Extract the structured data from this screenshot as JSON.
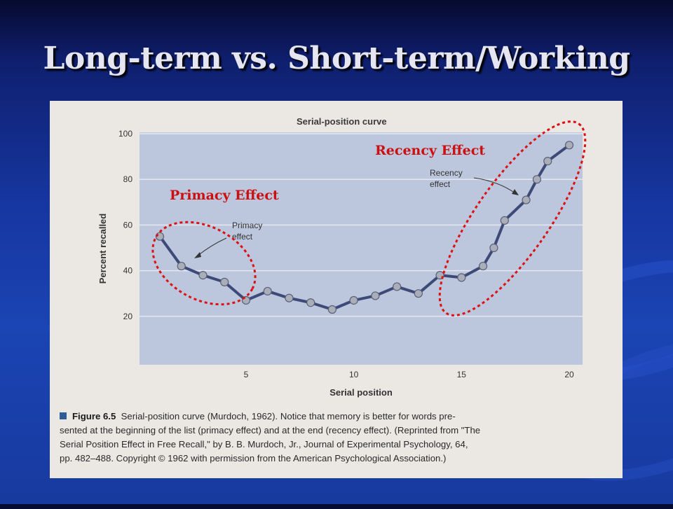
{
  "slide": {
    "title": "Long-term vs. Short-term/Working"
  },
  "figure": {
    "caption_label": "Figure 6.5",
    "caption_line1": "Serial-position curve (Murdoch, 1962). Notice that memory is better for words pre-",
    "caption_line2": "sented at the beginning of the list (primacy effect) and at the end (recency effect). (Reprinted from \"The",
    "caption_line3": "Serial Position Effect in Free Recall,\" by B. B. Murdoch, Jr., Journal of Experimental Psychology, 64,",
    "caption_line4": "pp. 482–488. Copyright © 1962 with permission from the American Psychological Association.)"
  },
  "annotations": {
    "primacy_red": "Primacy Effect",
    "recency_red": "Recency Effect",
    "primacy_inline": [
      "Primacy",
      "effect"
    ],
    "recency_inline": [
      "Recency",
      "effect"
    ]
  },
  "colors": {
    "line": "#3d4a78",
    "marker": "#a9aeb8",
    "plot_bg": "#bcc6dc",
    "highlight": "#dd1111"
  },
  "chart_data": {
    "type": "line",
    "title": "Serial-position curve",
    "xlabel": "Serial position",
    "ylabel": "Percent recalled",
    "xlim": [
      0,
      20
    ],
    "ylim": [
      0,
      100
    ],
    "x_ticks": [
      "5",
      "10",
      "15",
      "20"
    ],
    "y_ticks": [
      "20",
      "40",
      "60",
      "80",
      "100"
    ],
    "grid": "horizontal",
    "series": [
      {
        "x": [
          1,
          2,
          3,
          4,
          5,
          6,
          7,
          8,
          9,
          10,
          11,
          12,
          13,
          14,
          15,
          16,
          16.5,
          17,
          18,
          18.5,
          19,
          20
        ],
        "values": [
          55,
          42,
          38,
          35,
          27,
          31,
          28,
          26,
          23,
          27,
          29,
          33,
          30,
          38,
          37,
          42,
          50,
          62,
          71,
          80,
          88,
          95
        ]
      }
    ]
  }
}
